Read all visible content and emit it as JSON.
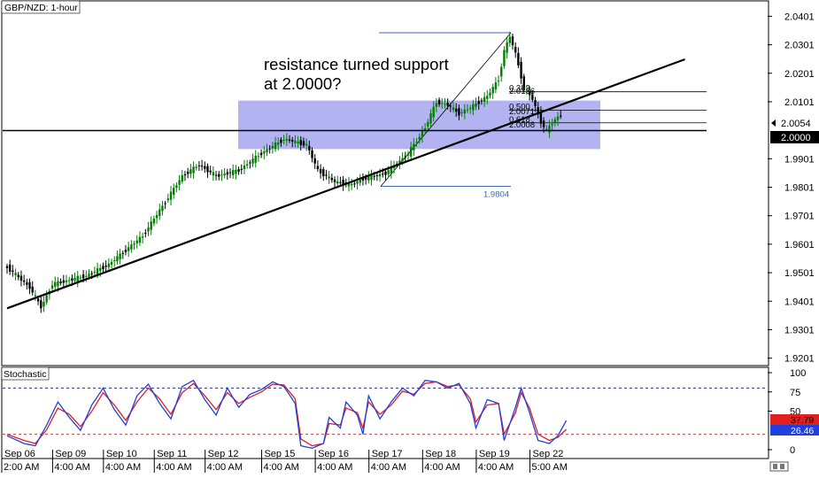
{
  "window": {
    "title": "GBP/NZD: 1-hour",
    "indicator_title": "Stochastic"
  },
  "annotation": {
    "line1": "resistance turned support",
    "line2": "at 2.0000?"
  },
  "colors": {
    "bull": "#008000",
    "bear": "#000000",
    "zone_fill": "#9999ee",
    "fib_line": "#3a6ab5",
    "stoch_k": "#1f3fe0",
    "stoch_d": "#e01f1f",
    "level80": "#2a2ab0",
    "level20": "#e03030",
    "badge_k": "#e01f1f",
    "badge_d": "#1f3fe0"
  },
  "chart_data": [
    {
      "type": "candlestick",
      "title": "GBP/NZD: 1-hour",
      "ylim": [
        1.9175,
        2.0455
      ],
      "y_ticks": [
        "2.0401",
        "2.0301",
        "2.0201",
        "2.0101",
        "2.0000",
        "1.9901",
        "1.9801",
        "1.9701",
        "1.9601",
        "1.9501",
        "1.9401",
        "1.9301",
        "1.9201"
      ],
      "current_price": "2.0054",
      "level_label": "2.0000",
      "horizontal_level": 2.0,
      "zone": [
        1.9935,
        2.0105
      ],
      "trendline": {
        "from": [
          0,
          1.9376
        ],
        "to": [
          240,
          2.025
        ]
      },
      "fibonacci": {
        "swing_high": 2.0343,
        "swing_low": 1.9804,
        "low_label": "1.9804",
        "levels": [
          {
            "label": "0.382",
            "value": 2.0136
          },
          {
            "label": "2.0136",
            "value": 2.0125
          },
          {
            "label": "0.500",
            "value": 2.0071
          },
          {
            "label": "2.0071",
            "value": 2.0055
          },
          {
            "label": "0.618",
            "value": 2.0027
          },
          {
            "label": "2.0008",
            "value": 2.0008
          }
        ]
      },
      "x_labels": [
        {
          "label": "Sep 06",
          "i": 0
        },
        {
          "label": "Sep 09",
          "i": 18
        },
        {
          "label": "Sep 10",
          "i": 36
        },
        {
          "label": "Sep 11",
          "i": 54
        },
        {
          "label": "Sep 12",
          "i": 72
        },
        {
          "label": "Sep 15",
          "i": 92
        },
        {
          "label": "Sep 16",
          "i": 111
        },
        {
          "label": "Sep 17",
          "i": 130
        },
        {
          "label": "Sep 18",
          "i": 149
        },
        {
          "label": "Sep 19",
          "i": 168
        },
        {
          "label": "Sep 22",
          "i": 187
        }
      ],
      "time_labels": [
        {
          "label": "2:00 AM",
          "i": 0
        },
        {
          "label": "4:00 AM",
          "i": 18
        },
        {
          "label": "4:00 AM",
          "i": 36
        },
        {
          "label": "4:00 AM",
          "i": 54
        },
        {
          "label": "4:00 AM",
          "i": 72
        },
        {
          "label": "4:00 AM",
          "i": 92
        },
        {
          "label": "4:00 AM",
          "i": 111
        },
        {
          "label": "4:00 AM",
          "i": 130
        },
        {
          "label": "4:00 AM",
          "i": 149
        },
        {
          "label": "4:00 AM",
          "i": 168
        },
        {
          "label": "5:00 AM",
          "i": 187
        }
      ],
      "anchors": [
        [
          0,
          1.952
        ],
        [
          8,
          1.945
        ],
        [
          12,
          1.938
        ],
        [
          16,
          1.946
        ],
        [
          28,
          1.949
        ],
        [
          36,
          1.953
        ],
        [
          42,
          1.958
        ],
        [
          48,
          1.963
        ],
        [
          56,
          1.975
        ],
        [
          62,
          1.984
        ],
        [
          68,
          1.988
        ],
        [
          74,
          1.984
        ],
        [
          82,
          1.986
        ],
        [
          90,
          1.992
        ],
        [
          98,
          1.997
        ],
        [
          106,
          1.995
        ],
        [
          110,
          1.986
        ],
        [
          116,
          1.982
        ],
        [
          122,
          1.981
        ],
        [
          126,
          1.983
        ],
        [
          134,
          1.985
        ],
        [
          142,
          1.992
        ],
        [
          148,
          2.001
        ],
        [
          152,
          2.01
        ],
        [
          156,
          2.009
        ],
        [
          160,
          2.006
        ],
        [
          164,
          2.008
        ],
        [
          170,
          2.012
        ],
        [
          174,
          2.018
        ],
        [
          176,
          2.028
        ],
        [
          178,
          2.033
        ],
        [
          180,
          2.027
        ],
        [
          183,
          2.015
        ],
        [
          186,
          2.011
        ],
        [
          189,
          2.003
        ],
        [
          191,
          2.0
        ],
        [
          194,
          2.004
        ],
        [
          196,
          2.0054
        ]
      ]
    },
    {
      "type": "line",
      "title": "Stochastic",
      "ylim": [
        0,
        100
      ],
      "y_ticks": [
        "100",
        "75",
        "50",
        "0"
      ],
      "levels": [
        80,
        20
      ],
      "k_value": "37.79",
      "d_value": "26.46",
      "series": [
        {
          "key": "k",
          "anchors": [
            [
              0,
              18
            ],
            [
              6,
              8
            ],
            [
              10,
              5
            ],
            [
              14,
              32
            ],
            [
              18,
              62
            ],
            [
              22,
              42
            ],
            [
              26,
              25
            ],
            [
              30,
              58
            ],
            [
              34,
              80
            ],
            [
              38,
              52
            ],
            [
              42,
              32
            ],
            [
              46,
              70
            ],
            [
              50,
              85
            ],
            [
              54,
              60
            ],
            [
              58,
              40
            ],
            [
              62,
              82
            ],
            [
              66,
              90
            ],
            [
              70,
              65
            ],
            [
              74,
              45
            ],
            [
              78,
              80
            ],
            [
              82,
              55
            ],
            [
              86,
              72
            ],
            [
              90,
              78
            ],
            [
              94,
              88
            ],
            [
              98,
              82
            ],
            [
              102,
              60
            ],
            [
              104,
              5
            ],
            [
              108,
              2
            ],
            [
              112,
              8
            ],
            [
              114,
              42
            ],
            [
              118,
              28
            ],
            [
              120,
              62
            ],
            [
              124,
              45
            ],
            [
              126,
              20
            ],
            [
              128,
              70
            ],
            [
              132,
              40
            ],
            [
              136,
              62
            ],
            [
              140,
              80
            ],
            [
              144,
              70
            ],
            [
              148,
              90
            ],
            [
              152,
              88
            ],
            [
              156,
              80
            ],
            [
              160,
              86
            ],
            [
              164,
              60
            ],
            [
              166,
              28
            ],
            [
              170,
              65
            ],
            [
              174,
              60
            ],
            [
              176,
              12
            ],
            [
              180,
              55
            ],
            [
              182,
              80
            ],
            [
              185,
              48
            ],
            [
              188,
              12
            ],
            [
              192,
              8
            ],
            [
              195,
              18
            ],
            [
              198,
              37.79
            ]
          ]
        },
        {
          "key": "d",
          "anchors": [
            [
              0,
              20
            ],
            [
              6,
              12
            ],
            [
              10,
              8
            ],
            [
              14,
              26
            ],
            [
              18,
              54
            ],
            [
              22,
              46
            ],
            [
              26,
              30
            ],
            [
              30,
              50
            ],
            [
              34,
              74
            ],
            [
              38,
              58
            ],
            [
              42,
              38
            ],
            [
              46,
              62
            ],
            [
              50,
              80
            ],
            [
              54,
              66
            ],
            [
              58,
              46
            ],
            [
              62,
              74
            ],
            [
              66,
              86
            ],
            [
              70,
              70
            ],
            [
              74,
              52
            ],
            [
              78,
              74
            ],
            [
              82,
              60
            ],
            [
              86,
              68
            ],
            [
              90,
              75
            ],
            [
              94,
              85
            ],
            [
              98,
              84
            ],
            [
              102,
              66
            ],
            [
              104,
              14
            ],
            [
              108,
              5
            ],
            [
              112,
              8
            ],
            [
              114,
              34
            ],
            [
              118,
              32
            ],
            [
              120,
              54
            ],
            [
              124,
              48
            ],
            [
              126,
              28
            ],
            [
              128,
              62
            ],
            [
              132,
              46
            ],
            [
              136,
              58
            ],
            [
              140,
              76
            ],
            [
              144,
              72
            ],
            [
              148,
              86
            ],
            [
              152,
              88
            ],
            [
              156,
              82
            ],
            [
              160,
              84
            ],
            [
              164,
              66
            ],
            [
              166,
              36
            ],
            [
              170,
              58
            ],
            [
              174,
              60
            ],
            [
              176,
              20
            ],
            [
              180,
              48
            ],
            [
              182,
              74
            ],
            [
              185,
              54
            ],
            [
              188,
              20
            ],
            [
              192,
              12
            ],
            [
              195,
              16
            ],
            [
              198,
              26.46
            ]
          ]
        }
      ]
    }
  ]
}
